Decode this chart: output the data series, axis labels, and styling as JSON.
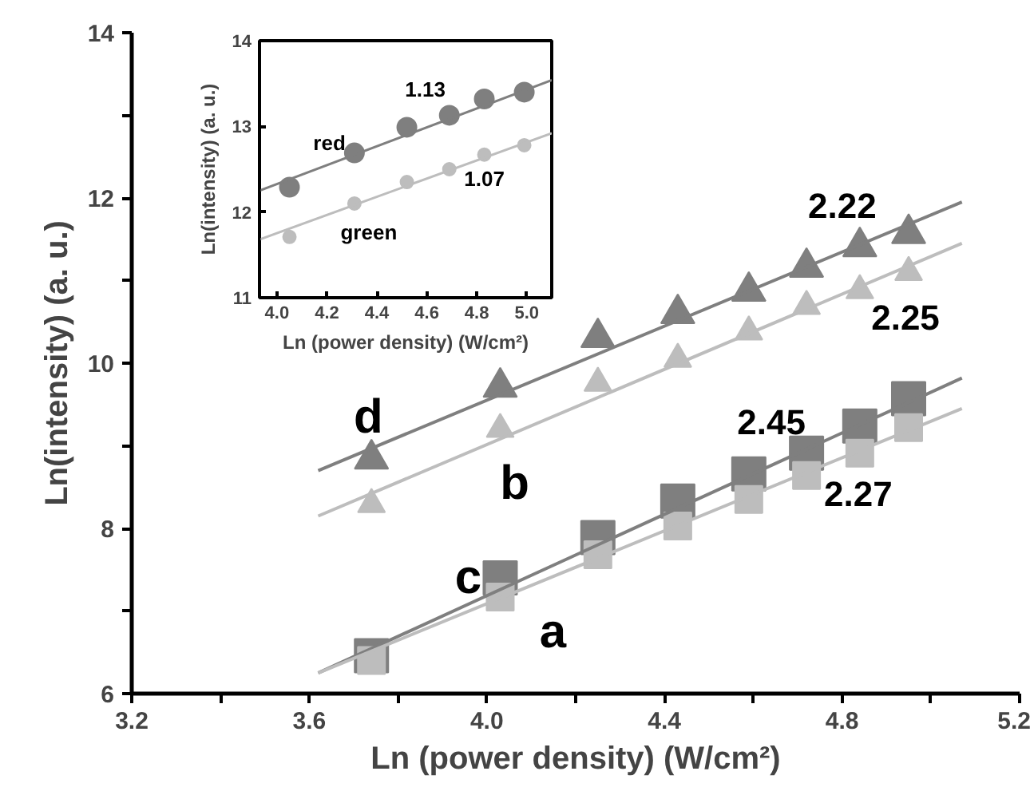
{
  "chart_data": [
    {
      "type": "scatter",
      "xlabel": "Ln (power density) (W/cm²)",
      "ylabel": "Ln(intensity) (a. u.)",
      "xlim": [
        3.2,
        5.2
      ],
      "ylim": [
        6,
        14
      ],
      "xticks": [
        {
          "value": 3.2,
          "label": "3.2"
        },
        {
          "value": 3.4,
          "label": null
        },
        {
          "value": 3.6,
          "label": "3.6"
        },
        {
          "value": 3.8,
          "label": null
        },
        {
          "value": 4.0,
          "label": "4.0"
        },
        {
          "value": 4.2,
          "label": null
        },
        {
          "value": 4.4,
          "label": "4.4"
        },
        {
          "value": 4.6,
          "label": null
        },
        {
          "value": 4.8,
          "label": "4.8"
        },
        {
          "value": 5.0,
          "label": null
        },
        {
          "value": 5.2,
          "label": "5.2"
        }
      ],
      "yticks": [
        6,
        {
          "value": 7,
          "label": null
        },
        8,
        {
          "value": 9,
          "label": null
        },
        10,
        {
          "value": 11,
          "label": null
        },
        12,
        {
          "value": 13,
          "label": null
        },
        14
      ],
      "grid": false,
      "x": [
        3.74,
        4.03,
        4.25,
        4.43,
        4.59,
        4.72,
        4.84,
        4.95
      ],
      "series": [
        {
          "marker": "triangle",
          "color": "#7f7f7f",
          "values": [
            8.84,
            9.71,
            10.31,
            10.6,
            10.87,
            11.16,
            11.41,
            11.57
          ]
        },
        {
          "marker": "triangle",
          "color": "#bdbdbd",
          "values": [
            8.29,
            9.2,
            9.76,
            10.05,
            10.38,
            10.69,
            10.88,
            11.1
          ]
        },
        {
          "marker": "square",
          "color": "#7f7f7f",
          "values": [
            6.46,
            7.4,
            7.89,
            8.33,
            8.66,
            8.91,
            9.24,
            9.57
          ]
        },
        {
          "marker": "square",
          "color": "#bdbdbd",
          "values": [
            6.4,
            7.17,
            7.68,
            8.03,
            8.35,
            8.64,
            8.91,
            9.22
          ]
        },
        {
          "type": "line",
          "line_style": "solid",
          "color": "#7f7f7f",
          "x": [
            3.62,
            5.07
          ],
          "values": [
            8.7,
            11.95
          ]
        },
        {
          "type": "line",
          "line_style": "solid",
          "color": "#bdbdbd",
          "x": [
            3.62,
            5.07
          ],
          "values": [
            8.15,
            11.45
          ]
        },
        {
          "type": "line",
          "line_style": "solid",
          "color": "#7f7f7f",
          "x": [
            3.62,
            5.07
          ],
          "values": [
            6.25,
            9.82
          ]
        },
        {
          "type": "line",
          "line_style": "solid",
          "color": "#bdbdbd",
          "x": [
            3.62,
            5.07
          ],
          "values": [
            6.25,
            9.45
          ]
        }
      ],
      "annotations": [
        {
          "text": "d",
          "x": 3.74,
          "y": 8.84
        },
        {
          "text": "b",
          "x": 4.03,
          "y": 9.2
        },
        {
          "text": "c",
          "x": 4.03,
          "y": 7.4
        },
        {
          "text": "a",
          "x": 4.03,
          "y": 7.17
        },
        {
          "text": "2.22",
          "x": 4.84,
          "y": 11.41
        },
        {
          "text": "2.25",
          "x": 4.95,
          "y": 11.1
        },
        {
          "text": "2.45",
          "x": 4.72,
          "y": 8.91
        },
        {
          "text": "2.27",
          "x": 4.84,
          "y": 8.91
        }
      ]
    },
    {
      "type": "scatter",
      "xlabel": "Ln (power density) (W/cm²)",
      "ylabel": "Ln(intensity) (a. u.)",
      "xlim": [
        3.93,
        5.1
      ],
      "ylim": [
        11,
        14
      ],
      "xticks": [
        {
          "value": 4.0,
          "label": "4.0"
        },
        4.2,
        4.4,
        4.6,
        4.8,
        {
          "value": 5.0,
          "label": "5.0"
        }
      ],
      "yticks": [
        11,
        12,
        13,
        14
      ],
      "grid": false,
      "x": [
        4.05,
        4.31,
        4.52,
        4.69,
        4.83,
        4.99
      ],
      "series": [
        {
          "marker": "circle",
          "color": "#7f7f7f",
          "values": [
            12.29,
            12.69,
            12.99,
            13.13,
            13.32,
            13.4
          ]
        },
        {
          "marker": "circle",
          "color": "#bdbdbd",
          "values": [
            11.71,
            12.1,
            12.35,
            12.5,
            12.67,
            12.78
          ]
        },
        {
          "type": "line",
          "line_style": "solid",
          "color": "#7f7f7f",
          "x": [
            3.93,
            5.1
          ],
          "values": [
            12.25,
            13.54
          ]
        },
        {
          "type": "line",
          "line_style": "solid",
          "color": "#bdbdbd",
          "x": [
            3.93,
            5.1
          ],
          "values": [
            11.68,
            12.92
          ]
        }
      ],
      "annotations": [
        {
          "text": "red",
          "x": 4.05,
          "y": 12.29
        },
        {
          "text": "green",
          "x": 4.31,
          "y": 12.1
        },
        {
          "text": "1.13",
          "x": 4.83,
          "y": 13.32
        },
        {
          "text": "1.07",
          "x": 4.83,
          "y": 12.67
        }
      ]
    }
  ]
}
